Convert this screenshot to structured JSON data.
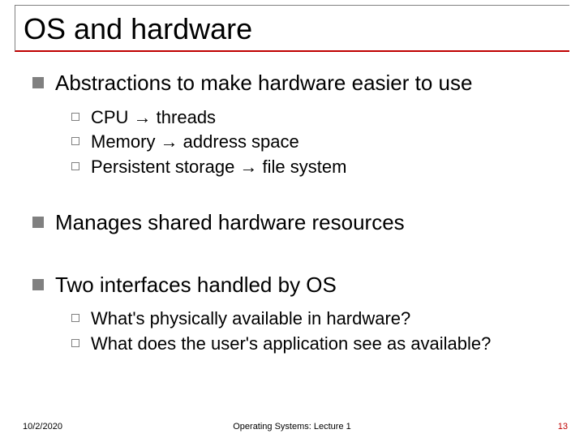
{
  "title": "OS and hardware",
  "bullets": [
    {
      "text": "Abstractions to make hardware easier to use",
      "subs": [
        "CPU → threads",
        "Memory → address space",
        "Persistent storage → file system"
      ]
    },
    {
      "text": "Manages shared hardware resources",
      "subs": []
    },
    {
      "text": "Two interfaces handled by OS",
      "subs": [
        "What's physically available in hardware?",
        "What does the user's application see as available?"
      ]
    }
  ],
  "footer": {
    "date": "10/2/2020",
    "lecture": "Operating Systems: Lecture 1",
    "page": "13"
  },
  "colors": {
    "title_underline": "#c00000",
    "bullet_gray": "#808080",
    "page_number": "#c00000",
    "text": "#000000",
    "background": "#ffffff"
  }
}
